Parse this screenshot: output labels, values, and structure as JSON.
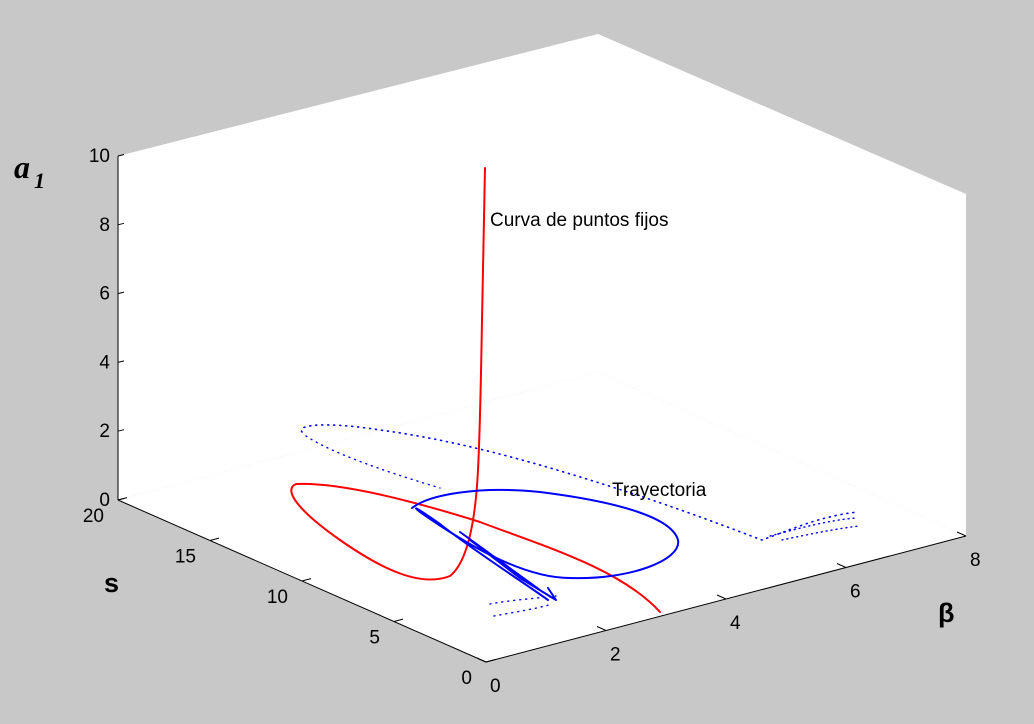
{
  "chart_data": {
    "type": "line3d",
    "title": "",
    "axes": {
      "x": {
        "label": "β",
        "range": [
          0,
          8
        ],
        "ticks": [
          0,
          2,
          4,
          6,
          8
        ]
      },
      "y": {
        "label": "s",
        "range": [
          0,
          20
        ],
        "ticks": [
          0,
          5,
          10,
          15,
          20
        ]
      },
      "z": {
        "label_main": "a",
        "label_sub": "1",
        "range": [
          0,
          10
        ],
        "ticks": [
          0,
          2,
          4,
          6,
          8,
          10
        ]
      }
    },
    "grid": false,
    "series": [
      {
        "name": "Curva de puntos fijos",
        "color": "#ff0000",
        "style": "solid"
      },
      {
        "name": "Trayectoria",
        "color": "#0000ff",
        "style": "dotted-then-solid"
      }
    ],
    "annotations": [
      {
        "text": "Curva de puntos fijos",
        "series": "Curva de puntos fijos"
      },
      {
        "text": "Trayectoria",
        "series": "Trayectoria"
      }
    ]
  }
}
